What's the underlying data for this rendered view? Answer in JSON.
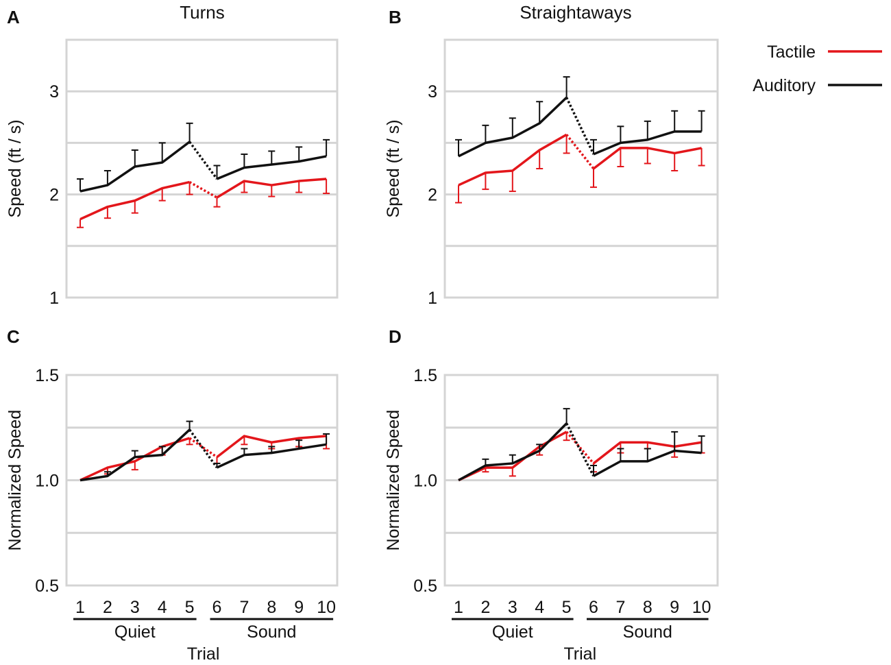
{
  "colors": {
    "tactile": "#e3161b",
    "auditory": "#111111",
    "grid": "#d4d4d4",
    "frame": "#d4d4d4"
  },
  "legend": {
    "items": [
      {
        "label": "Tactile",
        "series": "tactile"
      },
      {
        "label": "Auditory",
        "series": "auditory"
      }
    ]
  },
  "chart_data": [
    {
      "panel": "A",
      "type": "line",
      "title": "Turns",
      "ylabel": "Speed (ft / s)",
      "ylim": [
        1,
        3.5
      ],
      "gridlines": [
        1.5,
        2,
        2.5,
        3
      ],
      "yticks": [
        "1",
        "2",
        "3"
      ],
      "ytick_values": [
        1,
        2,
        3
      ],
      "x": [
        1,
        2,
        3,
        4,
        5,
        6,
        7,
        8,
        9,
        10
      ],
      "xticks": [],
      "groups": [],
      "xlabel": "",
      "series": [
        {
          "name": "Tactile",
          "key": "tactile",
          "values": [
            1.76,
            1.88,
            1.94,
            2.06,
            2.12,
            1.97,
            2.13,
            2.09,
            2.13,
            2.15
          ],
          "errors": [
            0.08,
            0.11,
            0.12,
            0.12,
            0.12,
            0.09,
            0.11,
            0.11,
            0.11,
            0.14
          ]
        },
        {
          "name": "Auditory",
          "key": "auditory",
          "values": [
            2.03,
            2.09,
            2.27,
            2.31,
            2.51,
            2.15,
            2.26,
            2.29,
            2.32,
            2.37
          ],
          "errors": [
            0.12,
            0.14,
            0.16,
            0.19,
            0.18,
            0.13,
            0.13,
            0.13,
            0.14,
            0.16
          ]
        }
      ]
    },
    {
      "panel": "B",
      "type": "line",
      "title": "Straightaways",
      "ylabel": "Speed (ft / s)",
      "ylim": [
        1,
        3.5
      ],
      "gridlines": [
        1.5,
        2,
        2.5,
        3
      ],
      "yticks": [
        "1",
        "2",
        "3"
      ],
      "ytick_values": [
        1,
        2,
        3
      ],
      "x": [
        1,
        2,
        3,
        4,
        5,
        6,
        7,
        8,
        9,
        10
      ],
      "xticks": [],
      "groups": [],
      "xlabel": "",
      "series": [
        {
          "name": "Tactile",
          "key": "tactile",
          "values": [
            2.09,
            2.21,
            2.23,
            2.43,
            2.58,
            2.25,
            2.45,
            2.45,
            2.4,
            2.45
          ],
          "errors": [
            0.17,
            0.16,
            0.2,
            0.18,
            0.18,
            0.18,
            0.18,
            0.15,
            0.17,
            0.17
          ]
        },
        {
          "name": "Auditory",
          "key": "auditory",
          "values": [
            2.37,
            2.5,
            2.55,
            2.69,
            2.94,
            2.39,
            2.5,
            2.53,
            2.61,
            2.61
          ],
          "errors": [
            0.16,
            0.17,
            0.19,
            0.21,
            0.2,
            0.14,
            0.16,
            0.18,
            0.2,
            0.2
          ]
        }
      ]
    },
    {
      "panel": "C",
      "type": "line",
      "title": "",
      "ylabel": "Normalized Speed",
      "ylim": [
        0.5,
        1.5
      ],
      "gridlines": [
        0.75,
        1.0,
        1.25,
        1.5
      ],
      "yticks": [
        "0.5",
        "1.0",
        "1.5"
      ],
      "ytick_values": [
        0.5,
        1.0,
        1.5
      ],
      "x": [
        1,
        2,
        3,
        4,
        5,
        6,
        7,
        8,
        9,
        10
      ],
      "xticks": [
        "1",
        "2",
        "3",
        "4",
        "5",
        "6",
        "7",
        "8",
        "9",
        "10"
      ],
      "groups": [
        {
          "label": "Quiet",
          "from": 1,
          "to": 5
        },
        {
          "label": "Sound",
          "from": 6,
          "to": 10
        }
      ],
      "xlabel": "Trial",
      "series": [
        {
          "name": "Tactile",
          "key": "tactile",
          "values": [
            1.0,
            1.06,
            1.09,
            1.16,
            1.2,
            1.11,
            1.21,
            1.18,
            1.2,
            1.21
          ],
          "errors": [
            0,
            0.03,
            0.04,
            0.04,
            0.03,
            0.03,
            0.04,
            0.03,
            0.04,
            0.06
          ]
        },
        {
          "name": "Auditory",
          "key": "auditory",
          "values": [
            1.0,
            1.02,
            1.11,
            1.12,
            1.24,
            1.06,
            1.12,
            1.13,
            1.15,
            1.17
          ],
          "errors": [
            0,
            0.02,
            0.03,
            0.04,
            0.04,
            0.02,
            0.03,
            0.03,
            0.04,
            0.05
          ]
        }
      ]
    },
    {
      "panel": "D",
      "type": "line",
      "title": "",
      "ylabel": "Normalized Speed",
      "ylim": [
        0.5,
        1.5
      ],
      "gridlines": [
        0.75,
        1.0,
        1.25,
        1.5
      ],
      "yticks": [
        "0.5",
        "1.0",
        "1.5"
      ],
      "ytick_values": [
        0.5,
        1.0,
        1.5
      ],
      "x": [
        1,
        2,
        3,
        4,
        5,
        6,
        7,
        8,
        9,
        10
      ],
      "xticks": [
        "1",
        "2",
        "3",
        "4",
        "5",
        "6",
        "7",
        "8",
        "9",
        "10"
      ],
      "groups": [
        {
          "label": "Quiet",
          "from": 1,
          "to": 5
        },
        {
          "label": "Sound",
          "from": 6,
          "to": 10
        }
      ],
      "xlabel": "Trial",
      "series": [
        {
          "name": "Tactile",
          "key": "tactile",
          "values": [
            1.0,
            1.06,
            1.06,
            1.16,
            1.23,
            1.08,
            1.18,
            1.18,
            1.16,
            1.18
          ],
          "errors": [
            0,
            0.02,
            0.04,
            0.04,
            0.04,
            0.04,
            0.05,
            0.03,
            0.05,
            0.05
          ]
        },
        {
          "name": "Auditory",
          "key": "auditory",
          "values": [
            1.0,
            1.07,
            1.08,
            1.14,
            1.27,
            1.02,
            1.09,
            1.09,
            1.14,
            1.13
          ],
          "errors": [
            0,
            0.03,
            0.04,
            0.03,
            0.07,
            0.05,
            0.06,
            0.06,
            0.09,
            0.08
          ]
        }
      ]
    }
  ]
}
